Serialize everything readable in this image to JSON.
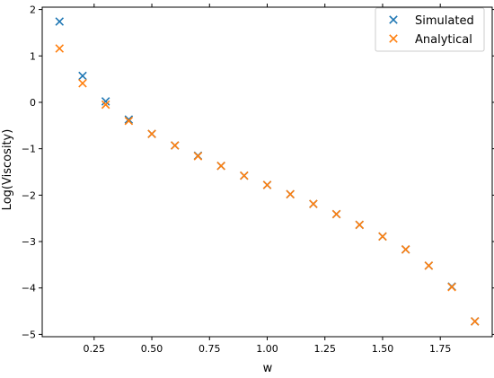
{
  "chart_data": {
    "type": "scatter",
    "title": "",
    "xlabel": "w",
    "ylabel": "Log(Viscosity)",
    "xlim": [
      0.025,
      1.975
    ],
    "ylim": [
      -5.05,
      2.05
    ],
    "xticks": [
      0.25,
      0.5,
      0.75,
      1.0,
      1.25,
      1.5,
      1.75
    ],
    "xtick_labels": [
      "0.25",
      "0.50",
      "0.75",
      "1.00",
      "1.25",
      "1.50",
      "1.75"
    ],
    "yticks": [
      -5,
      -4,
      -3,
      -2,
      -1,
      0,
      1,
      2
    ],
    "ytick_labels": [
      "−5",
      "−4",
      "−3",
      "−2",
      "−1",
      "0",
      "1",
      "2"
    ],
    "grid": false,
    "legend_position": "top-right",
    "series": [
      {
        "name": "Simulated",
        "marker": "x",
        "color": "#1f77b4",
        "x": [
          0.1,
          0.2,
          0.3,
          0.4,
          0.5,
          0.6,
          0.7,
          0.8,
          0.9,
          1.0,
          1.1,
          1.2,
          1.3,
          1.4,
          1.5,
          1.6,
          1.7,
          1.8,
          1.9
        ],
        "y": [
          1.74,
          0.57,
          0.02,
          -0.37,
          -0.68,
          -0.93,
          -1.15,
          -1.37,
          -1.58,
          -1.78,
          -1.98,
          -2.19,
          -2.41,
          -2.64,
          -2.89,
          -3.17,
          -3.52,
          -3.97,
          -4.72
        ]
      },
      {
        "name": "Analytical",
        "marker": "x",
        "color": "#ff7f0e",
        "x": [
          0.1,
          0.2,
          0.3,
          0.4,
          0.5,
          0.6,
          0.7,
          0.8,
          0.9,
          1.0,
          1.1,
          1.2,
          1.3,
          1.4,
          1.5,
          1.6,
          1.7,
          1.8,
          1.9
        ],
        "y": [
          1.16,
          0.41,
          -0.05,
          -0.4,
          -0.68,
          -0.93,
          -1.16,
          -1.37,
          -1.58,
          -1.78,
          -1.98,
          -2.19,
          -2.41,
          -2.64,
          -2.89,
          -3.17,
          -3.52,
          -3.98,
          -4.72
        ]
      }
    ]
  }
}
